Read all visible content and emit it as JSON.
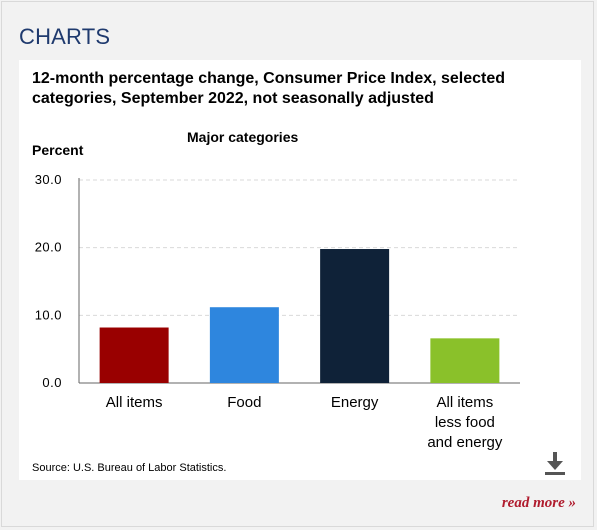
{
  "heading": "CHARTS",
  "read_more": "read more »",
  "source": "Source: U.S. Bureau of Labor Statistics.",
  "chart_data": {
    "type": "bar",
    "title": "12-month percentage change, Consumer Price Index, selected categories, September 2022, not seasonally adjusted",
    "subtitle": "Major categories",
    "xlabel": "",
    "ylabel": "Percent",
    "ylim": [
      0,
      30
    ],
    "yticks": [
      "0.0",
      "10.0",
      "20.0",
      "30.0"
    ],
    "grid": true,
    "categories": [
      "All items",
      "Food",
      "Energy",
      "All items less food and energy"
    ],
    "category_lines": [
      [
        "All items"
      ],
      [
        "Food"
      ],
      [
        "Energy"
      ],
      [
        "All items",
        "less food",
        "and energy"
      ]
    ],
    "values": [
      8.2,
      11.2,
      19.8,
      6.6
    ],
    "colors": [
      "#990000",
      "#2e86de",
      "#0f2238",
      "#8ac12a"
    ]
  }
}
